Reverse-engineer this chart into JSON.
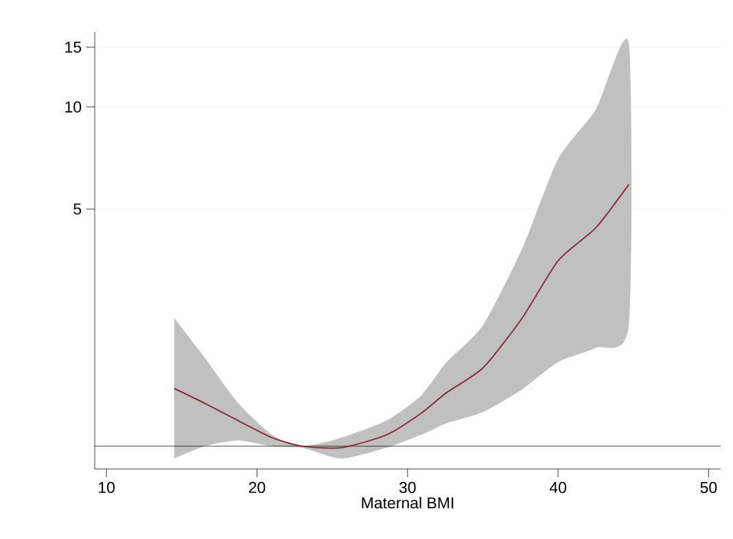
{
  "chart_data": {
    "type": "line",
    "xlabel": "Maternal BMI",
    "xlim": [
      9.22,
      50.8
    ],
    "xticks": [
      10,
      20,
      30,
      40,
      50
    ],
    "ylim": [
      0.857,
      16.6
    ],
    "yticks": [
      5,
      10,
      15
    ],
    "log": "y",
    "grid": "y",
    "line_style": "solid",
    "marker": "none",
    "ref_lines": [
      {
        "axis": "y",
        "value": 1,
        "color": "#000000"
      }
    ],
    "series": [
      {
        "color": "#8b2c3a",
        "x": [
          14.5,
          16.5,
          18.75,
          21,
          23,
          25.6,
          28.6,
          30.9,
          32.6,
          35,
          37.6,
          40,
          42.5,
          44.7
        ],
        "values": [
          1.48,
          1.34,
          1.19,
          1.06,
          1.0,
          0.99,
          1.08,
          1.25,
          1.44,
          1.7,
          2.38,
          3.52,
          4.4,
          5.91
        ],
        "upper": [
          2.39,
          1.83,
          1.34,
          1.08,
          1.0,
          1.06,
          1.19,
          1.41,
          1.77,
          2.27,
          3.81,
          7.02,
          9.82,
          15.4
        ],
        "lower": [
          0.92,
          1.0,
          1.04,
          1.0,
          0.99,
          0.92,
          0.99,
          1.08,
          1.17,
          1.26,
          1.47,
          1.77,
          1.95,
          2.27
        ]
      }
    ]
  }
}
